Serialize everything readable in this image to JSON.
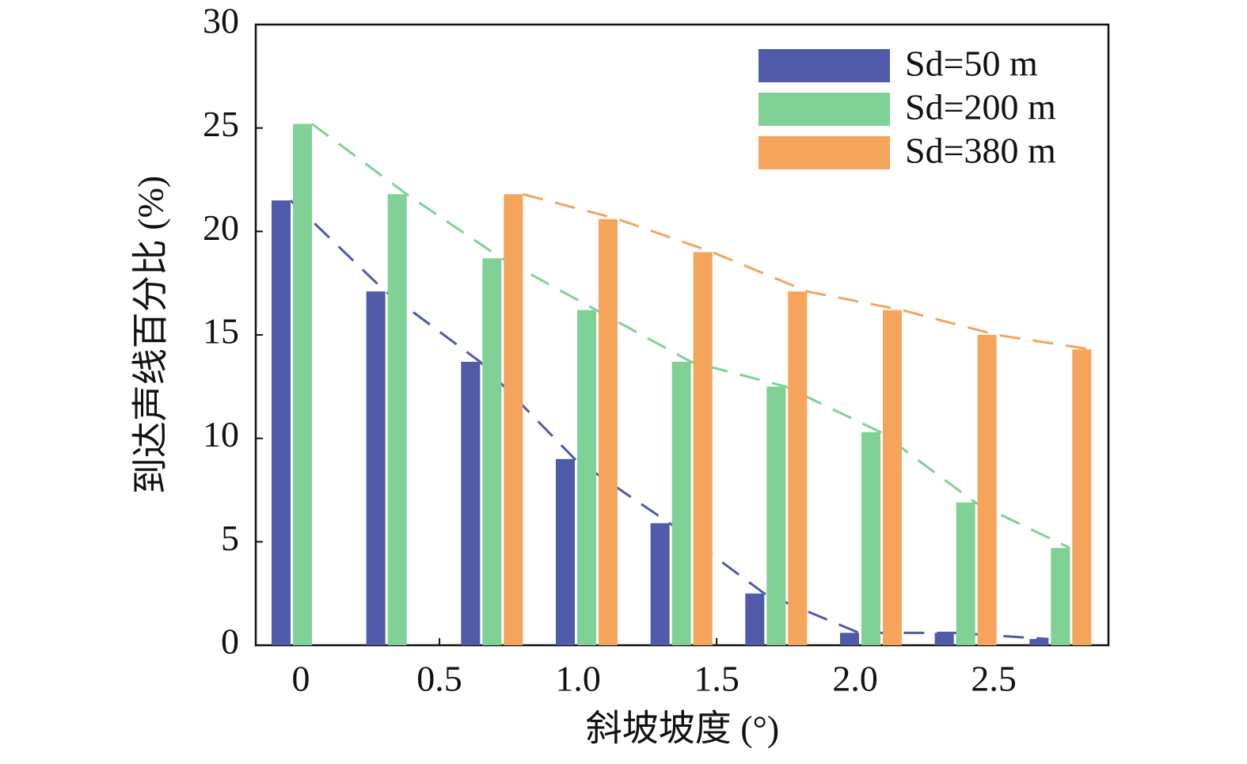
{
  "chart_data": {
    "type": "bar",
    "x_label": "斜坡坡度 (°)",
    "y_label": "到达声线百分比 (%)",
    "categories": [
      null,
      null,
      null,
      null,
      null,
      null,
      null,
      null,
      null
    ],
    "series": [
      {
        "name": "Sd=50 m",
        "color": "#4f5ba8",
        "values": [
          21.5,
          17.1,
          13.7,
          9.0,
          5.9,
          2.5,
          0.6,
          0.6,
          0.3
        ]
      },
      {
        "name": "Sd=200 m",
        "color": "#7fd196",
        "values": [
          25.2,
          21.8,
          18.7,
          16.2,
          13.7,
          12.5,
          10.3,
          6.9,
          4.7
        ]
      },
      {
        "name": "Sd=380 m",
        "color": "#f5a45c",
        "values": [
          null,
          null,
          21.8,
          20.6,
          19.0,
          17.1,
          16.2,
          15.0,
          14.3
        ]
      }
    ],
    "xlim": [
      -0.163,
      2.914
    ],
    "xticks": [
      0,
      0.5,
      {
        "value": 1,
        "label": "1.0"
      },
      1.5,
      {
        "value": 2,
        "label": "2.0"
      },
      2.5
    ],
    "ylim": [
      0,
      30
    ],
    "yticks": [
      0,
      5,
      10,
      15,
      20,
      25,
      30
    ],
    "legend": "upper right",
    "trend_lines": true
  }
}
